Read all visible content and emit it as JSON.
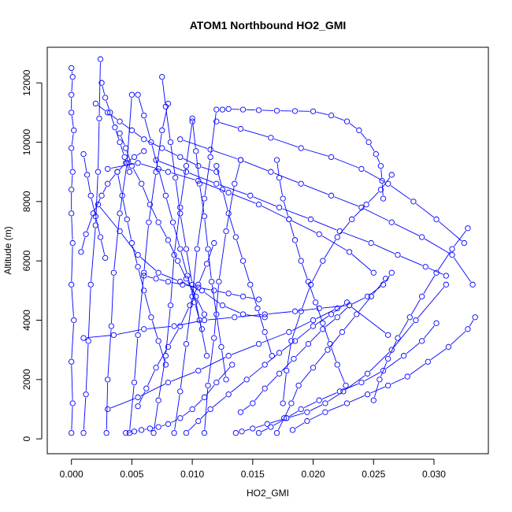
{
  "chart_data": {
    "type": "line",
    "title": "ATOM1 Northbound HO2_GMI",
    "xlabel": "HO2_GMI",
    "ylabel": "Altitude (m)",
    "xlim": [
      -0.002,
      0.0345
    ],
    "ylim": [
      -500,
      13200
    ],
    "xticks": [
      0.0,
      0.005,
      0.01,
      0.015,
      0.02,
      0.025,
      0.03
    ],
    "xtick_labels": [
      "0.000",
      "0.005",
      "0.010",
      "0.015",
      "0.020",
      "0.025",
      "0.030"
    ],
    "yticks": [
      0,
      2000,
      4000,
      6000,
      8000,
      10000,
      12000
    ],
    "ytick_labels": [
      "0",
      "2000",
      "4000",
      "6000",
      "8000",
      "10000",
      "12000"
    ],
    "marker": "open-circle",
    "color": "#0000ff",
    "grid": false,
    "series": [
      {
        "x": [
          0.0,
          0.0001,
          0.0,
          0.0002,
          0.0,
          0.0001,
          0.0,
          0.0,
          0.0001,
          0.0,
          0.0002,
          0.0,
          0.0,
          0.0001,
          0.0
        ],
        "y": [
          200,
          1200,
          2600,
          4000,
          5200,
          6600,
          7600,
          8400,
          9000,
          9800,
          10400,
          11000,
          11600,
          12200,
          12500
        ]
      },
      {
        "x": [
          0.001,
          0.0012,
          0.0014,
          0.0016,
          0.002,
          0.0022,
          0.0023,
          0.0024
        ],
        "y": [
          200,
          1500,
          3300,
          5200,
          7200,
          9000,
          10800,
          12800
        ]
      },
      {
        "x": [
          0.0029,
          0.003,
          0.0033,
          0.0035,
          0.004,
          0.0046,
          0.005
        ],
        "y": [
          200,
          2000,
          3800,
          5600,
          7600,
          9300,
          11600
        ]
      },
      {
        "x": [
          0.0048,
          0.0052,
          0.0055,
          0.006,
          0.0064,
          0.007,
          0.0075,
          0.008
        ],
        "y": [
          200,
          1900,
          3500,
          5600,
          7300,
          9000,
          10400,
          11300
        ]
      },
      {
        "x": [
          0.0068,
          0.0072,
          0.0078,
          0.0082,
          0.0085,
          0.009,
          0.0095,
          0.01
        ],
        "y": [
          200,
          1300,
          2800,
          4500,
          6200,
          7800,
          9200,
          10700
        ]
      },
      {
        "x": [
          0.0085,
          0.009,
          0.0095,
          0.01,
          0.0104,
          0.011,
          0.0115,
          0.012
        ],
        "y": [
          200,
          1600,
          3200,
          4800,
          6400,
          8100,
          9500,
          11100
        ]
      },
      {
        "x": [
          0.011,
          0.0113,
          0.0118,
          0.0122,
          0.0128,
          0.0135,
          0.014
        ],
        "y": [
          200,
          1800,
          3400,
          5300,
          7000,
          8600,
          9400
        ]
      },
      {
        "x": [
          0.0136,
          0.0141,
          0.015,
          0.0162,
          0.0178,
          0.0195,
          0.021,
          0.0225,
          0.0245,
          0.0265,
          0.0285,
          0.031
        ],
        "y": [
          200,
          250,
          350,
          500,
          700,
          900,
          1200,
          1600,
          2200,
          3000,
          4000,
          5200
        ]
      },
      {
        "x": [
          0.0155,
          0.0165,
          0.0178,
          0.019,
          0.0205,
          0.0222,
          0.024,
          0.0258,
          0.0275,
          0.029,
          0.0302
        ],
        "y": [
          200,
          400,
          700,
          1000,
          1300,
          1600,
          1900,
          2300,
          2800,
          3300,
          3900
        ]
      },
      {
        "x": [
          0.0183,
          0.0195,
          0.021,
          0.0228,
          0.0245,
          0.0262,
          0.0278,
          0.0295,
          0.0312,
          0.0328,
          0.0334
        ],
        "y": [
          300,
          600,
          900,
          1200,
          1500,
          1800,
          2100,
          2600,
          3100,
          3700,
          4100
        ]
      },
      {
        "x": [
          0.0175,
          0.0178,
          0.0182,
          0.019,
          0.0198,
          0.0208,
          0.022,
          0.0232,
          0.0244,
          0.0256,
          0.0265
        ],
        "y": [
          1200,
          2300,
          3300,
          4300,
          5200,
          6000,
          6800,
          7400,
          7900,
          8400,
          8900
        ]
      },
      {
        "x": [
          0.0125,
          0.013,
          0.0142,
          0.0155,
          0.017,
          0.0185,
          0.02,
          0.0215,
          0.0228,
          0.0238,
          0.0246,
          0.0252,
          0.0256,
          0.0257,
          0.0258
        ],
        "y": [
          11100,
          11120,
          11100,
          11080,
          11060,
          11050,
          11040,
          10900,
          10700,
          10400,
          10000,
          9600,
          9200,
          8700,
          8100
        ]
      },
      {
        "x": [
          0.012,
          0.014,
          0.0165,
          0.019,
          0.0215,
          0.024,
          0.0262,
          0.0283,
          0.0302,
          0.0325
        ],
        "y": [
          10700,
          10450,
          10150,
          9800,
          9500,
          9100,
          8600,
          8000,
          7400,
          6600
        ]
      },
      {
        "x": [
          0.009,
          0.0115,
          0.014,
          0.0165,
          0.019,
          0.0215,
          0.024,
          0.0265,
          0.029,
          0.0315,
          0.0332
        ],
        "y": [
          10100,
          9750,
          9400,
          9000,
          8600,
          8200,
          7800,
          7300,
          6800,
          6200,
          5200
        ]
      },
      {
        "x": [
          0.007,
          0.0095,
          0.012,
          0.0148,
          0.0172,
          0.0198,
          0.0222,
          0.0248,
          0.027,
          0.0293,
          0.031
        ],
        "y": [
          9400,
          9000,
          8600,
          8200,
          7800,
          7400,
          7000,
          6600,
          6200,
          5800,
          5500
        ]
      },
      {
        "x": [
          0.003,
          0.0055,
          0.008,
          0.0105,
          0.013,
          0.0155,
          0.018,
          0.0205,
          0.023,
          0.025
        ],
        "y": [
          9100,
          9300,
          9000,
          8700,
          8300,
          7900,
          7400,
          6900,
          6300,
          5600
        ]
      },
      {
        "x": [
          0.001,
          0.0035,
          0.006,
          0.0085,
          0.011,
          0.0135,
          0.016,
          0.0185,
          0.0205,
          0.023,
          0.0262
        ],
        "y": [
          3400,
          3500,
          3700,
          3800,
          4000,
          4100,
          4200,
          4300,
          4400,
          4500,
          3500
        ]
      },
      {
        "x": [
          0.003,
          0.0055,
          0.008,
          0.0105,
          0.013,
          0.0155,
          0.018,
          0.02,
          0.022
        ],
        "y": [
          1000,
          1400,
          1900,
          2300,
          2800,
          3200,
          3600,
          4000,
          4400
        ]
      },
      {
        "x": [
          0.0022,
          0.004,
          0.0055,
          0.0072,
          0.009,
          0.0108,
          0.0125,
          0.0142,
          0.016
        ],
        "y": [
          7900,
          7000,
          6200,
          5600,
          5300,
          5000,
          4500,
          4200,
          4100
        ]
      },
      {
        "x": [
          0.014,
          0.015,
          0.016,
          0.0172,
          0.0184,
          0.0196,
          0.0208,
          0.022,
          0.023,
          0.0245,
          0.0258,
          0.0265
        ],
        "y": [
          900,
          1200,
          1700,
          2200,
          2700,
          3200,
          3700,
          4100,
          4500,
          4800,
          5200,
          5600
        ]
      },
      {
        "x": [
          0.017,
          0.0172,
          0.0175,
          0.018,
          0.0185,
          0.019,
          0.0196,
          0.0202,
          0.0208,
          0.0214,
          0.022,
          0.0227
        ],
        "y": [
          9400,
          8800,
          8100,
          7400,
          6700,
          6000,
          5300,
          4600,
          3900,
          3200,
          2500,
          1800
        ]
      },
      {
        "x": [
          0.0008,
          0.0012,
          0.0018,
          0.0025,
          0.003,
          0.0038,
          0.0045,
          0.0052,
          0.006
        ],
        "y": [
          6300,
          6900,
          7600,
          8200,
          8600,
          9000,
          9300,
          9500,
          9700
        ]
      },
      {
        "x": [
          0.004,
          0.0045,
          0.005,
          0.0058,
          0.0065,
          0.0072,
          0.008,
          0.0088,
          0.0095,
          0.0103,
          0.011
        ],
        "y": [
          10300,
          9800,
          9200,
          8600,
          7900,
          7300,
          6700,
          6000,
          5400,
          4800,
          4200
        ]
      },
      {
        "x": [
          0.0055,
          0.006,
          0.0066,
          0.0072,
          0.0078,
          0.0084,
          0.009,
          0.0096,
          0.0102,
          0.0108
        ],
        "y": [
          11600,
          10900,
          10000,
          9100,
          8200,
          7300,
          6400,
          5500,
          4600,
          3700
        ]
      },
      {
        "x": [
          0.0075,
          0.0078,
          0.0082,
          0.0086,
          0.009,
          0.0095,
          0.01,
          0.0106,
          0.0112
        ],
        "y": [
          12200,
          11200,
          10000,
          8800,
          7600,
          6400,
          5200,
          4000,
          2800
        ]
      },
      {
        "x": [
          0.0038,
          0.0042,
          0.0046,
          0.005,
          0.0055,
          0.006,
          0.0066,
          0.0072,
          0.0078
        ],
        "y": [
          9000,
          8200,
          7400,
          6600,
          5800,
          5000,
          4100,
          3300,
          2500
        ]
      },
      {
        "x": [
          0.01,
          0.0103,
          0.0106,
          0.011,
          0.0113,
          0.0116,
          0.012,
          0.0124,
          0.0128
        ],
        "y": [
          10800,
          9700,
          8600,
          7500,
          6400,
          5300,
          4200,
          3100,
          2000
        ]
      },
      {
        "x": [
          0.012,
          0.0125,
          0.013,
          0.0136,
          0.0142,
          0.0148,
          0.0154,
          0.016,
          0.0166
        ],
        "y": [
          9200,
          8400,
          7600,
          6800,
          6000,
          5200,
          4400,
          3600,
          2800
        ]
      },
      {
        "x": [
          0.0055,
          0.0062,
          0.007,
          0.008,
          0.009,
          0.0098,
          0.0105,
          0.0112,
          0.0118
        ],
        "y": [
          1100,
          1700,
          2400,
          3100,
          3800,
          4500,
          5200,
          5900,
          6600
        ]
      },
      {
        "x": [
          0.0045,
          0.0052,
          0.0058,
          0.0065,
          0.0072,
          0.008,
          0.009,
          0.01,
          0.011,
          0.012,
          0.0133
        ],
        "y": [
          200,
          250,
          300,
          350,
          400,
          500,
          700,
          1000,
          1400,
          1900,
          2500
        ]
      },
      {
        "x": [
          0.0095,
          0.0105,
          0.0115,
          0.013,
          0.0145,
          0.016,
          0.0172,
          0.0185,
          0.02,
          0.0215,
          0.0228
        ],
        "y": [
          200,
          600,
          1000,
          1500,
          2000,
          2500,
          2900,
          3300,
          3800,
          4200,
          4600
        ]
      },
      {
        "x": [
          0.017,
          0.0176,
          0.0182,
          0.0188,
          0.02,
          0.0212,
          0.0224,
          0.0236,
          0.0248,
          0.026
        ],
        "y": [
          200,
          700,
          1200,
          1800,
          2400,
          3000,
          3600,
          4200,
          4800,
          5400
        ]
      },
      {
        "x": [
          0.025,
          0.0255,
          0.0262,
          0.027,
          0.028,
          0.029,
          0.0302,
          0.0315,
          0.0328
        ],
        "y": [
          1300,
          2000,
          2700,
          3400,
          4100,
          4800,
          5600,
          6400,
          7100
        ]
      },
      {
        "x": [
          0.006,
          0.007,
          0.008,
          0.0092,
          0.0105,
          0.0118,
          0.013,
          0.0142,
          0.0155
        ],
        "y": [
          5500,
          5400,
          5300,
          5200,
          5100,
          5000,
          4900,
          4800,
          4700
        ]
      },
      {
        "x": [
          0.002,
          0.003,
          0.004,
          0.005,
          0.006,
          0.0075,
          0.009,
          0.0105,
          0.012
        ],
        "y": [
          11300,
          11000,
          10700,
          10400,
          10100,
          9800,
          9500,
          9200,
          9000
        ]
      },
      {
        "x": [
          0.0025,
          0.0028,
          0.0032,
          0.0036,
          0.004,
          0.0044,
          0.0048
        ],
        "y": [
          12000,
          11500,
          11000,
          10500,
          10000,
          9500,
          9000
        ]
      },
      {
        "x": [
          0.001,
          0.0013,
          0.0016,
          0.002,
          0.0024,
          0.0028
        ],
        "y": [
          9600,
          8900,
          8200,
          7500,
          6800,
          6100
        ]
      }
    ]
  }
}
